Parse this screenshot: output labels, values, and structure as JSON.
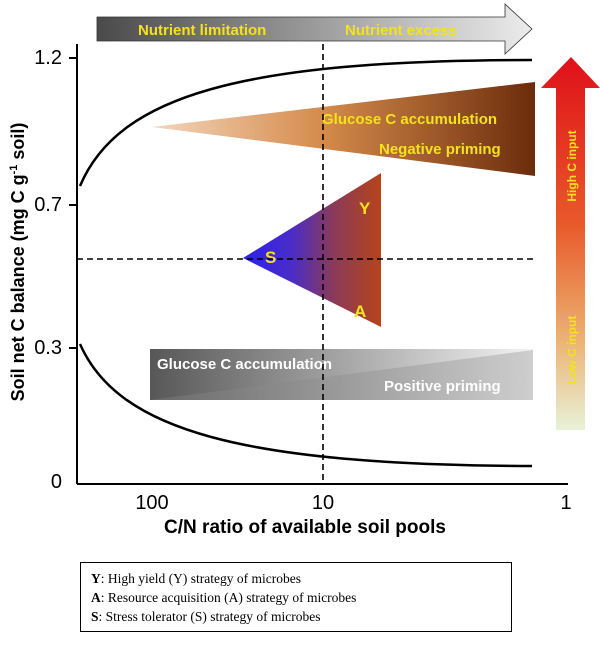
{
  "arrow_top": {
    "left_label": "Nutrient limitation",
    "right_label": "Nutrient excess"
  },
  "y_axis": {
    "label": "Soil net C balance (mg C g",
    "label_sup": "-1",
    "label_end": " soil)",
    "ticks": [
      "1.2",
      "0.7",
      "0.3",
      "0"
    ]
  },
  "x_axis": {
    "label": "C/N ratio of available soil pools",
    "ticks": [
      "100",
      "10",
      "1"
    ]
  },
  "upper_wedge": {
    "line1": "Glucose C accumulation",
    "line2": "Negative priming"
  },
  "lower_wedge": {
    "line1": "Glucose C accumulation",
    "line2": "Positive priming"
  },
  "triangle": {
    "vertex_y": "Y",
    "vertex_a": "A",
    "vertex_s": "S"
  },
  "right_arrow": {
    "top_label": "High C input",
    "bottom_label": "Low C input"
  },
  "legend": [
    {
      "key": "Y",
      "text": ": High yield (Y) strategy of microbes"
    },
    {
      "key": "A",
      "text": ": Resource acquisition (A) strategy of microbes"
    },
    {
      "key": "S",
      "text": ": Stress tolerator (S) strategy of microbes"
    }
  ],
  "colors": {
    "triangle_left": "#2a20f0",
    "triangle_right": "#b5441a",
    "upper_wedge": "#6b2c0c",
    "label_yellow": "#f4e21a",
    "arrow_high": "#e0101a",
    "arrow_low": "#e8f2d8"
  }
}
